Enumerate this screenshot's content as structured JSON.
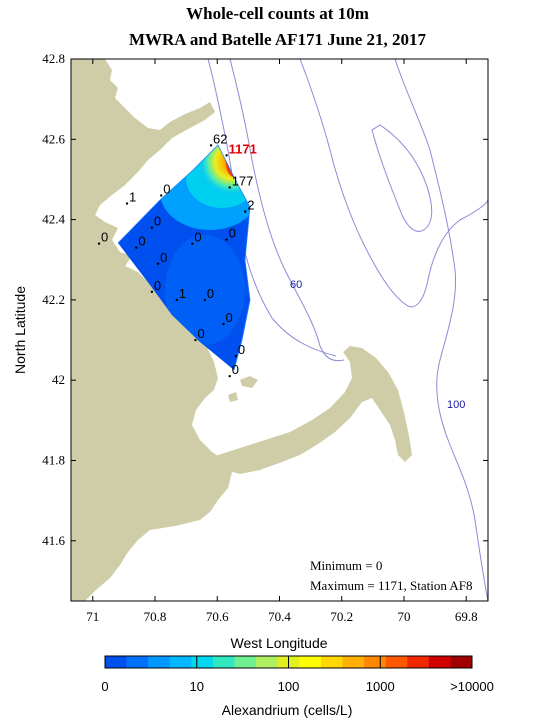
{
  "title": {
    "line1": "Whole-cell counts at 10m",
    "line2": "MWRA and Batelle AF171 June 21, 2017"
  },
  "axes": {
    "xlabel": "West Longitude",
    "ylabel": "North Latitude",
    "x_ticks": [
      "71",
      "70.8",
      "70.6",
      "70.4",
      "70.2",
      "70",
      "69.8"
    ],
    "x_values": [
      71.0,
      70.8,
      70.6,
      70.4,
      70.2,
      70.0,
      69.8
    ],
    "y_ticks": [
      "42.8",
      "42.6",
      "42.4",
      "42.2",
      "42",
      "41.8",
      "41.6"
    ],
    "y_values": [
      42.8,
      42.6,
      42.4,
      42.2,
      42.0,
      41.8,
      41.6
    ],
    "xlim": [
      71.07,
      69.73
    ],
    "ylim": [
      41.45,
      42.8
    ]
  },
  "contour_labels": [
    "60",
    "100"
  ],
  "stations": [
    {
      "label": "62",
      "lon": 70.62,
      "lat": 42.585
    },
    {
      "label": "1171",
      "lon": 70.57,
      "lat": 42.56,
      "max": true
    },
    {
      "label": "177",
      "lon": 70.56,
      "lat": 42.48
    },
    {
      "label": "1",
      "lon": 70.89,
      "lat": 42.44
    },
    {
      "label": "0",
      "lon": 70.78,
      "lat": 42.46
    },
    {
      "label": "2",
      "lon": 70.51,
      "lat": 42.42
    },
    {
      "label": "0",
      "lon": 70.81,
      "lat": 42.38
    },
    {
      "label": "0",
      "lon": 70.98,
      "lat": 42.34
    },
    {
      "label": "0",
      "lon": 70.86,
      "lat": 42.33
    },
    {
      "label": "0",
      "lon": 70.68,
      "lat": 42.34
    },
    {
      "label": "0",
      "lon": 70.57,
      "lat": 42.35
    },
    {
      "label": "0",
      "lon": 70.79,
      "lat": 42.29
    },
    {
      "label": "0",
      "lon": 70.81,
      "lat": 42.22
    },
    {
      "label": "1",
      "lon": 70.73,
      "lat": 42.2
    },
    {
      "label": "0",
      "lon": 70.64,
      "lat": 42.2
    },
    {
      "label": "0",
      "lon": 70.58,
      "lat": 42.14
    },
    {
      "label": "0",
      "lon": 70.67,
      "lat": 42.1
    },
    {
      "label": "0",
      "lon": 70.54,
      "lat": 42.06
    },
    {
      "label": "0",
      "lon": 70.56,
      "lat": 42.01
    }
  ],
  "notes": {
    "minimum": "Minimum = 0",
    "maximum": "Maximum = 1171, Station AF8"
  },
  "colorbar": {
    "title": "Alexandrium (cells/L)",
    "tick_labels": [
      "0",
      "10",
      "100",
      "1000",
      ">10000"
    ],
    "colors": [
      "#0050f0",
      "#0070ff",
      "#0098ff",
      "#00b8ff",
      "#00d8f0",
      "#30e8c0",
      "#70f090",
      "#b0f060",
      "#e0f020",
      "#ffff00",
      "#ffd800",
      "#ffb000",
      "#ff8800",
      "#ff5800",
      "#f02800",
      "#d00000",
      "#a00000"
    ],
    "scale": "log"
  },
  "colors": {
    "land": "#cfcda7",
    "contour": "#8b8bd8",
    "low": "#0050f0",
    "high": "#e00000"
  }
}
